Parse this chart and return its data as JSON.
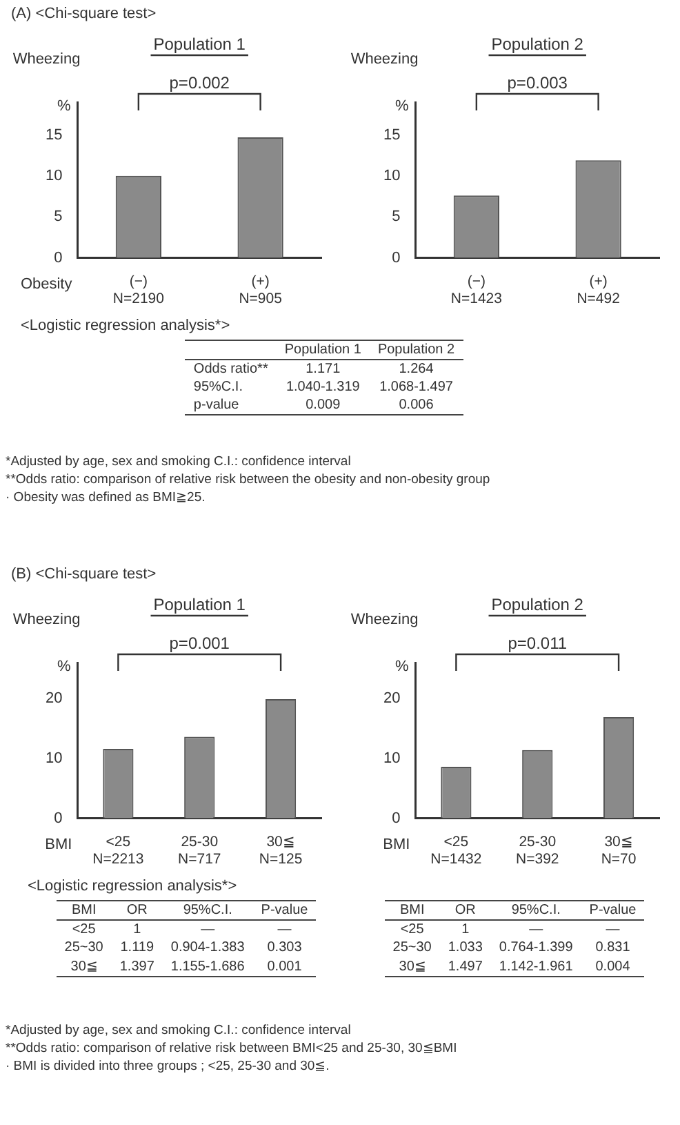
{
  "chart_data": [
    {
      "type": "other",
      "title": "(A) <Chi-square test>"
    },
    {
      "type": "bar",
      "title": "Population 1",
      "ylabel": "Wheezing %",
      "xlabel": "Obesity",
      "categories": [
        "(−)\nN=2190",
        "(+)\nN=905"
      ],
      "values": [
        10,
        14.7
      ],
      "color": "#8a8a8a",
      "ylim": [
        0,
        19
      ],
      "yticks": [
        0,
        5,
        10,
        15
      ],
      "annotations": [
        "p=0.002"
      ]
    },
    {
      "type": "bar",
      "title": "Population 2",
      "ylabel": "Wheezing %",
      "categories": [
        "(−)\nN=1423",
        "(+)\nN=492"
      ],
      "values": [
        7.6,
        11.9
      ],
      "color": "#8a8a8a",
      "ylim": [
        0,
        19
      ],
      "yticks": [
        0,
        5,
        10,
        15
      ],
      "annotations": [
        "p=0.003"
      ]
    },
    {
      "type": "other",
      "title": "<Logistic regression analysis*>",
      "categories": [
        null,
        "Population 1",
        "Population 2"
      ],
      "y_categories": [
        "Odds ratio**",
        "95%C.I.",
        "p-value"
      ],
      "cell_labels": [
        [
          "1.171",
          "1.264"
        ],
        [
          "1.040-1.319",
          "1.068-1.497"
        ],
        [
          "0.009",
          "0.006"
        ]
      ]
    },
    {
      "type": "other",
      "annotations": [
        "*Adjusted by age, sex and smoking   C.I.: confidence interval",
        "**Odds ratio: comparison of relative risk between the obesity and non-obesity group",
        "· Obesity was defined as BMI≧25."
      ]
    },
    {
      "type": "other",
      "title": "(B) <Chi-square test>"
    },
    {
      "type": "bar",
      "title": "Population 1",
      "ylabel": "Wheezing %",
      "xlabel": "BMI",
      "categories": [
        "<25\nN=2213",
        "25-30\nN=717",
        "30≦\nN=125"
      ],
      "values": [
        11.6,
        13.6,
        19.9
      ],
      "color": "#8a8a8a",
      "ylim": [
        0,
        26
      ],
      "yticks": [
        0,
        10,
        20
      ],
      "annotations": [
        "p=0.001"
      ]
    },
    {
      "type": "bar",
      "title": "Population 2",
      "ylabel": "Wheezing %",
      "xlabel": "BMI",
      "categories": [
        "<25\nN=1432",
        "25-30\nN=392",
        "30≦\nN=70"
      ],
      "values": [
        8.6,
        11.4,
        16.9
      ],
      "color": "#8a8a8a",
      "ylim": [
        0,
        26
      ],
      "yticks": [
        0,
        10,
        20
      ],
      "annotations": [
        "p=0.011"
      ]
    },
    {
      "type": "other",
      "title": "<Logistic regression analysis*>",
      "categories": [
        "BMI",
        "OR",
        "95%C.I.",
        "P-value"
      ],
      "y_categories": [
        "<25",
        "25~30",
        "30≦"
      ],
      "cell_labels": [
        [
          "1",
          "—",
          "—"
        ],
        [
          "1.119",
          "0.904-1.383",
          "0.303"
        ],
        [
          "1.397",
          "1.155-1.686",
          "0.001"
        ]
      ]
    },
    {
      "type": "other",
      "categories": [
        "BMI",
        "OR",
        "95%C.I.",
        "P-value"
      ],
      "y_categories": [
        "<25",
        "25~30",
        "30≦"
      ],
      "cell_labels": [
        [
          "1",
          "—",
          "—"
        ],
        [
          "1.033",
          "0.764-1.399",
          "0.831"
        ],
        [
          "1.497",
          "1.142-1.961",
          "0.004"
        ]
      ]
    },
    {
      "type": "other",
      "annotations": [
        "*Adjusted by age, sex and smoking   C.I.: confidence interval",
        "**Odds ratio: comparison of relative risk between BMI<25 and 25-30, 30≦BMI",
        "· BMI is divided into three groups ; <25, 25-30 and 30≦."
      ]
    }
  ]
}
